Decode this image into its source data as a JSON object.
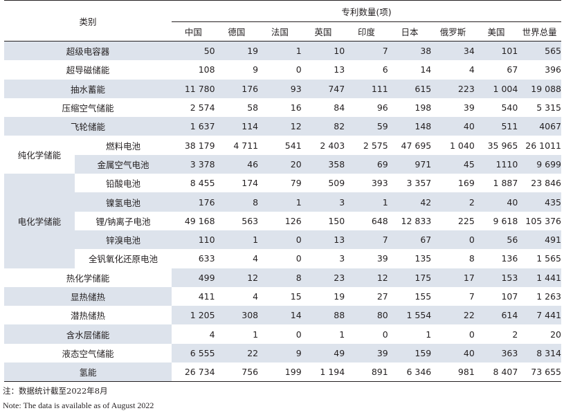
{
  "header": {
    "category_label": "类别",
    "group_label": "专利数量(项)",
    "columns": [
      "中国",
      "德国",
      "法国",
      "英国",
      "印度",
      "日本",
      "俄罗斯",
      "美国",
      "世界总量"
    ]
  },
  "rows": [
    {
      "label": "超级电容器",
      "values": [
        "50",
        "19",
        "1",
        "10",
        "7",
        "38",
        "34",
        "101",
        "565"
      ]
    },
    {
      "label": "超导磁储能",
      "values": [
        "108",
        "9",
        "0",
        "13",
        "6",
        "14",
        "4",
        "67",
        "396"
      ]
    },
    {
      "label": "抽水蓄能",
      "values": [
        "11 780",
        "176",
        "93",
        "747",
        "111",
        "615",
        "223",
        "1 004",
        "19 088"
      ]
    },
    {
      "label": "压缩空气储能",
      "values": [
        "2 574",
        "58",
        "16",
        "84",
        "96",
        "198",
        "39",
        "540",
        "5 315"
      ]
    },
    {
      "label": "飞轮储能",
      "values": [
        "1 637",
        "114",
        "12",
        "82",
        "59",
        "148",
        "40",
        "511",
        "4067"
      ]
    },
    {
      "group": "纯化学储能",
      "label": "燃料电池",
      "values": [
        "38 179",
        "4 711",
        "541",
        "2 403",
        "2 575",
        "47 695",
        "1 040",
        "35 965",
        "26 1011"
      ]
    },
    {
      "label": "金属空气电池",
      "values": [
        "3 378",
        "46",
        "20",
        "358",
        "69",
        "971",
        "45",
        "1110",
        "9 699"
      ]
    },
    {
      "group": "电化学储能",
      "label": "铅酸电池",
      "values": [
        "8 455",
        "174",
        "79",
        "509",
        "393",
        "3 357",
        "169",
        "1 887",
        "23 846"
      ]
    },
    {
      "label": "镍氢电池",
      "values": [
        "176",
        "8",
        "1",
        "3",
        "1",
        "42",
        "2",
        "40",
        "435"
      ]
    },
    {
      "label": "锂/钠离子电池",
      "values": [
        "49 168",
        "563",
        "126",
        "150",
        "648",
        "12 833",
        "225",
        "9 618",
        "105 376"
      ]
    },
    {
      "label": "锌溴电池",
      "values": [
        "110",
        "1",
        "0",
        "13",
        "7",
        "67",
        "0",
        "56",
        "491"
      ]
    },
    {
      "label": "全钒氧化还原电池",
      "values": [
        "633",
        "4",
        "0",
        "3",
        "39",
        "135",
        "8",
        "136",
        "1 565"
      ]
    },
    {
      "label": "热化学储能",
      "values": [
        "499",
        "12",
        "8",
        "23",
        "12",
        "175",
        "17",
        "153",
        "1 441"
      ]
    },
    {
      "label": "显热储热",
      "values": [
        "411",
        "4",
        "15",
        "19",
        "27",
        "155",
        "7",
        "107",
        "1 263"
      ]
    },
    {
      "label": "潜热储热",
      "values": [
        "1 205",
        "308",
        "14",
        "88",
        "80",
        "1 554",
        "22",
        "614",
        "7 441"
      ]
    },
    {
      "label": "含水层储能",
      "values": [
        "4",
        "1",
        "0",
        "1",
        "0",
        "1",
        "0",
        "2",
        "20"
      ]
    },
    {
      "label": "液态空气储能",
      "values": [
        "6 555",
        "22",
        "9",
        "49",
        "39",
        "159",
        "40",
        "363",
        "8 314"
      ]
    },
    {
      "label": "氢能",
      "values": [
        "26 734",
        "756",
        "199",
        "1 194",
        "891",
        "6 346",
        "981",
        "8 407",
        "73 655"
      ]
    }
  ],
  "notes": {
    "cn": "注：数据统计截至2022年8月",
    "en": "Note: The data is available as of August 2022"
  },
  "colors": {
    "row_shade": "#dde3ec",
    "rule": "#231f20"
  }
}
